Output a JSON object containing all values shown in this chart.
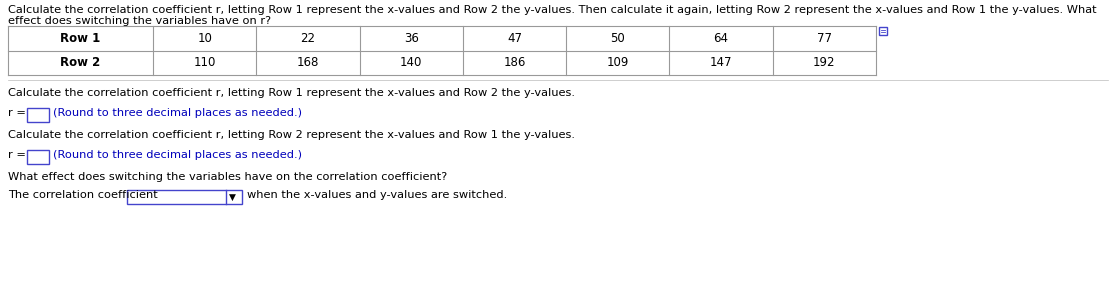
{
  "title_line1": "Calculate the correlation coefficient r, letting Row 1 represent the x-values and Row 2 the y-values. Then calculate it again, letting Row 2 represent the x-values and Row 1 the y-values. What",
  "title_line2": "effect does switching the variables have on r?",
  "table_row1": [
    10,
    22,
    36,
    47,
    50,
    64,
    77
  ],
  "table_row2": [
    110,
    168,
    140,
    186,
    109,
    147,
    192
  ],
  "q1_text": "Calculate the correlation coefficient r, letting Row 1 represent the x-values and Row 2 the y-values.",
  "q2_text": "Calculate the correlation coefficient r, letting Row 2 represent the x-values and Row 1 the y-values.",
  "q3_text": "What effect does switching the variables have on the correlation coefficient?",
  "hint_text": "(Round to three decimal places as needed.)",
  "q3_prefix": "The correlation coefficient",
  "q3_suffix": "when the x-values and y-values are switched.",
  "hint_color": "#0000bb",
  "text_color": "#000000",
  "input_border_color": "#4444cc",
  "dropdown_border_color": "#4444cc",
  "bg_color": "#ffffff",
  "title_fontsize": 8.2,
  "body_fontsize": 8.2,
  "table_fontsize": 8.5
}
